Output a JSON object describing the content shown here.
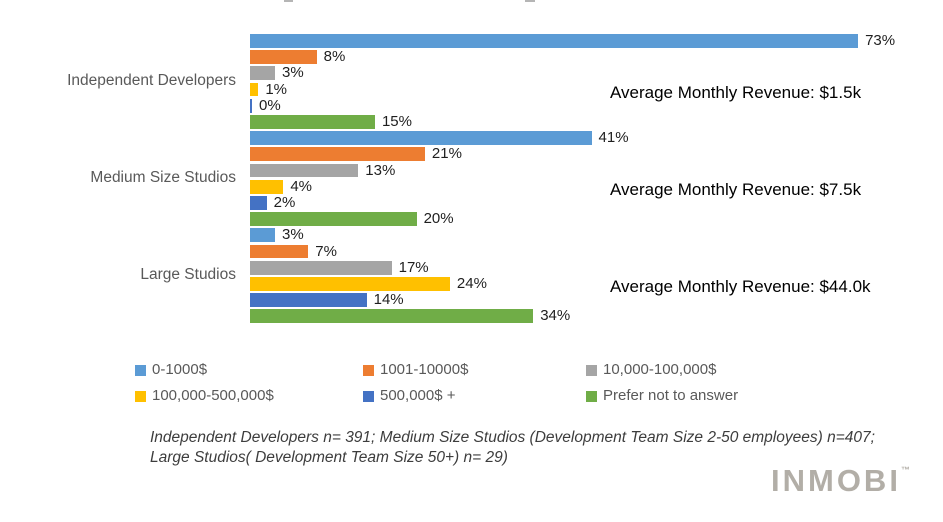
{
  "chart_data": {
    "type": "bar",
    "orientation": "horizontal",
    "unit": "%",
    "grid": false,
    "legend_position": "bottom",
    "xlim": [
      0,
      83
    ],
    "categories": [
      "Independent Developers",
      "Medium Size Studios",
      "Large Studios"
    ],
    "series": [
      {
        "name": "0-1000$",
        "color": "#5B9BD5",
        "values": [
          73,
          41,
          3
        ]
      },
      {
        "name": "1001-10000$",
        "color": "#ED7D31",
        "values": [
          8,
          21,
          7
        ]
      },
      {
        "name": "10,000-100,000$",
        "color": "#A5A5A5",
        "values": [
          3,
          13,
          17
        ]
      },
      {
        "name": "100,000-500,000$",
        "color": "#FFC000",
        "values": [
          1,
          4,
          24
        ]
      },
      {
        "name": "500,000$ +",
        "color": "#4472C4",
        "values": [
          0,
          2,
          14
        ]
      },
      {
        "name": "Prefer not to answer",
        "color": "#70AD47",
        "values": [
          15,
          20,
          34
        ]
      }
    ],
    "value_label_format": "{v}%",
    "annotations": [
      "Average Monthly Revenue: $1.5k",
      "Average Monthly Revenue: $7.5k",
      "Average Monthly Revenue: $44.0k"
    ]
  },
  "footnote": {
    "line1": "Independent Developers n= 391;  Medium Size Studios (Development Team Size 2-50 employees) n=407;",
    "line2": "Large Studios( Development Team Size 50+) n= 29)"
  },
  "logo": {
    "text": "INMOBI",
    "trademark": "™",
    "color": "#b2aea7"
  }
}
